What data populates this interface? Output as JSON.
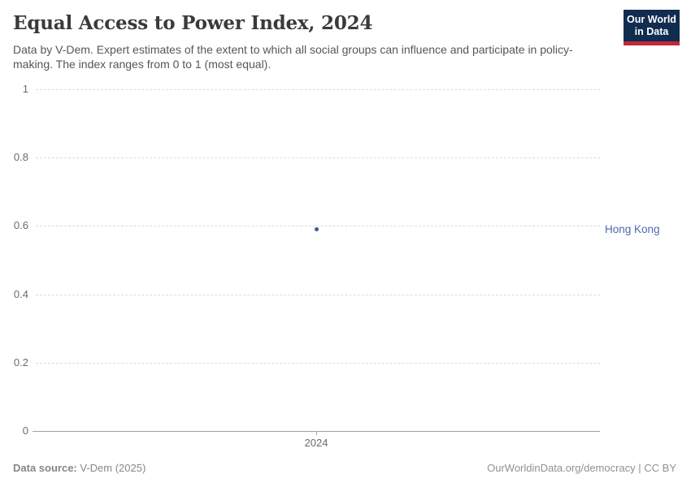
{
  "header": {
    "title": "Equal Access to Power Index, 2024",
    "subtitle": "Data by V-Dem. Expert estimates of the extent to which all social groups can influence and participate in policy-making. The index ranges from 0 to 1 (most equal).",
    "logo": {
      "line1": "Our World",
      "line2": "in Data",
      "bg_color": "#102d50",
      "accent_color": "#c0283c"
    }
  },
  "chart_data": {
    "type": "scatter",
    "title": "Equal Access to Power Index, 2024",
    "x": [
      2024
    ],
    "series": [
      {
        "name": "Hong Kong",
        "values": [
          0.59
        ]
      }
    ],
    "xlabel": "",
    "ylabel": "",
    "ylim": [
      0,
      1
    ],
    "yticks": [
      0,
      0.2,
      0.4,
      0.6,
      0.8,
      1
    ],
    "ytick_labels": [
      "0",
      "0.2",
      "0.4",
      "0.6",
      "0.8",
      "1"
    ],
    "xtick_labels": [
      "2024"
    ],
    "grid": true,
    "legend_position": "right-entity-label",
    "colors": {
      "point": "#3d5c96",
      "entity_label": "#4c6ba9",
      "gridline": "#dcdcdc",
      "axis": "#a1a1a1",
      "tick_label": "#6b6b6b"
    }
  },
  "footer": {
    "source_label": "Data source:",
    "source_value": " V-Dem (2025)",
    "attribution": "OurWorldinData.org/democracy | CC BY"
  }
}
